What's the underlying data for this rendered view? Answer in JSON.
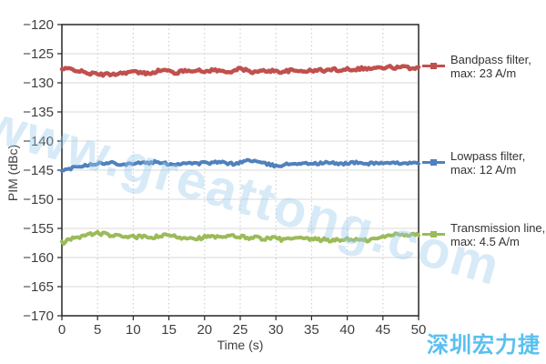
{
  "page": {
    "background": "#ffffff"
  },
  "watermark": {
    "text": "www.greattong.com",
    "color": "#9cccec",
    "opacity": 0.4,
    "rotation_deg": 16
  },
  "brand": {
    "text": "深圳宏力捷",
    "color": "#59c0f0"
  },
  "chart_data": {
    "type": "line",
    "title": "",
    "xlabel": "Time (s)",
    "ylabel": "PIM (dBc)",
    "xlim": [
      0,
      50
    ],
    "ylim": [
      -170,
      -120
    ],
    "xticks": [
      0,
      5,
      10,
      15,
      20,
      25,
      30,
      35,
      40,
      45,
      50
    ],
    "xtick_labels": [
      "0",
      "5",
      "10",
      "15",
      "20",
      "25",
      "30",
      "35",
      "40",
      "45",
      "50"
    ],
    "yticks": [
      -120,
      -125,
      -130,
      -135,
      -140,
      -145,
      -150,
      -155,
      -160,
      -165,
      -170
    ],
    "ytick_labels": [
      "−120",
      "−125",
      "−130",
      "−135",
      "−140",
      "−145",
      "−150",
      "−155",
      "−160",
      "−165",
      "−170"
    ],
    "grid": {
      "horizontal": "solid",
      "vertical": "dotted",
      "color": "#d9d9d9"
    },
    "legend_position": "right",
    "x_start": 0,
    "x_step": 1,
    "series": [
      {
        "id": "bandpass",
        "label": [
          "Bandpass filter,",
          "max: 23 A/m"
        ],
        "color": "#c0504d",
        "line_width": 4.5,
        "noise": 0.25,
        "values": [
          -127.7,
          -127.6,
          -127.8,
          -128.2,
          -128.4,
          -128.5,
          -128.6,
          -128.5,
          -128.4,
          -128.2,
          -128.1,
          -128.3,
          -128.4,
          -128.1,
          -127.8,
          -128.0,
          -128.3,
          -128.0,
          -127.8,
          -127.9,
          -128.1,
          -127.8,
          -127.9,
          -128.2,
          -127.9,
          -127.6,
          -127.9,
          -128.2,
          -128.0,
          -127.9,
          -128.0,
          -128.1,
          -127.9,
          -128.0,
          -127.9,
          -128.0,
          -127.8,
          -127.9,
          -127.7,
          -127.8,
          -127.6,
          -127.7,
          -127.5,
          -127.6,
          -127.4,
          -127.5,
          -127.3,
          -127.4,
          -127.3,
          -127.5,
          -127.3
        ]
      },
      {
        "id": "lowpass",
        "label": [
          "Lowpass filter,",
          "max: 12 A/m"
        ],
        "color": "#4f81bd",
        "line_width": 4,
        "noise": 0.22,
        "values": [
          -145.2,
          -144.8,
          -144.3,
          -144.2,
          -144.0,
          -143.8,
          -143.9,
          -143.7,
          -143.9,
          -144.0,
          -143.8,
          -143.7,
          -143.8,
          -143.6,
          -143.8,
          -143.9,
          -144.0,
          -143.8,
          -143.7,
          -143.9,
          -143.7,
          -143.8,
          -143.6,
          -143.8,
          -143.9,
          -143.7,
          -143.3,
          -143.4,
          -143.8,
          -144.0,
          -144.3,
          -144.1,
          -143.9,
          -143.8,
          -143.9,
          -143.8,
          -143.9,
          -143.7,
          -143.8,
          -143.9,
          -143.8,
          -143.7,
          -143.8,
          -143.9,
          -143.7,
          -143.8,
          -143.9,
          -143.8,
          -143.7,
          -143.8,
          -143.9
        ]
      },
      {
        "id": "transmission",
        "label": [
          "Transmission line,",
          "max: 4.5 A/m"
        ],
        "color": "#9bbb59",
        "line_width": 4,
        "noise": 0.3,
        "values": [
          -157.5,
          -157.0,
          -156.5,
          -156.3,
          -156.0,
          -155.8,
          -156.0,
          -156.2,
          -156.4,
          -156.3,
          -156.5,
          -156.4,
          -156.6,
          -156.5,
          -156.3,
          -156.2,
          -156.4,
          -156.6,
          -156.5,
          -156.7,
          -156.5,
          -156.4,
          -156.6,
          -156.5,
          -156.3,
          -156.4,
          -156.6,
          -156.5,
          -156.7,
          -156.8,
          -156.6,
          -157.0,
          -156.8,
          -156.7,
          -156.9,
          -156.8,
          -157.0,
          -156.9,
          -157.1,
          -157.0,
          -156.8,
          -156.9,
          -157.1,
          -157.0,
          -156.8,
          -156.5,
          -156.2,
          -155.9,
          -156.0,
          -156.1,
          -156.2
        ]
      }
    ]
  }
}
